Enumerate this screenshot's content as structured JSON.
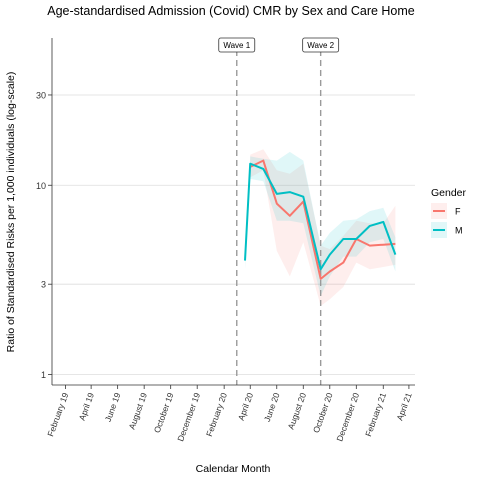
{
  "chart_data": {
    "type": "line",
    "title": "Age-standardised Admission (Covid) CMR by Sex and Care Home",
    "xlabel": "Calendar Month",
    "ylabel": "Ratio of Standardised Risks per 1,000 individuals (log-scale)",
    "y_scale": "log",
    "ylim": [
      0.88,
      60
    ],
    "y_ticks": [
      1,
      3,
      10,
      30
    ],
    "y_tick_labels": [
      "1",
      "3",
      "10",
      "30"
    ],
    "xlim": [
      "2019-01-01",
      "2021-04-15"
    ],
    "x_ticks": [
      "2019-02-01",
      "2019-04-01",
      "2019-06-01",
      "2019-08-01",
      "2019-10-01",
      "2019-12-01",
      "2020-02-01",
      "2020-04-01",
      "2020-06-01",
      "2020-08-01",
      "2020-10-01",
      "2020-12-01",
      "2021-02-01",
      "2021-04-01"
    ],
    "x_tick_labels": [
      "February 19",
      "April 19",
      "June 19",
      "August 19",
      "October 19",
      "December 19",
      "February 20",
      "April 20",
      "June 20",
      "August 20",
      "October 20",
      "December 20",
      "February 21",
      "April 21"
    ],
    "grid": "horizontal",
    "legend": {
      "title": "Gender",
      "position": "right"
    },
    "annotations": [
      {
        "label": "Wave 1",
        "x": "2020-03-01"
      },
      {
        "label": "Wave 2",
        "x": "2020-09-10"
      }
    ],
    "series": [
      {
        "name": "F",
        "color": "#F8766D",
        "x": [
          "2020-04-01",
          "2020-05-01",
          "2020-06-01",
          "2020-07-01",
          "2020-08-01",
          "2020-09-10",
          "2020-10-01",
          "2020-11-01",
          "2020-12-01",
          "2021-01-01",
          "2021-02-01",
          "2021-03-01"
        ],
        "y": [
          12.5,
          13.5,
          8.0,
          6.9,
          8.2,
          3.2,
          3.5,
          3.9,
          5.2,
          4.8,
          4.85,
          4.9
        ],
        "lower": [
          11.0,
          12.0,
          4.5,
          3.3,
          5.0,
          2.3,
          2.5,
          2.9,
          3.9,
          3.6,
          3.7,
          3.8
        ],
        "upper": [
          14.5,
          15.5,
          12.0,
          11.5,
          13.0,
          4.8,
          4.6,
          5.4,
          6.5,
          6.3,
          6.3,
          7.8
        ]
      },
      {
        "name": "M",
        "color": "#00BFC4",
        "x": [
          "2020-03-20",
          "2020-04-01",
          "2020-05-01",
          "2020-06-01",
          "2020-07-01",
          "2020-08-01",
          "2020-09-10",
          "2020-10-01",
          "2020-11-01",
          "2020-12-01",
          "2021-01-01",
          "2021-02-01",
          "2021-03-01"
        ],
        "y": [
          4.0,
          13.0,
          12.2,
          9.0,
          9.2,
          8.7,
          3.6,
          4.3,
          5.2,
          5.2,
          6.1,
          6.4,
          4.3
        ],
        "lower": [
          3.6,
          10.8,
          10.5,
          6.5,
          6.5,
          6.3,
          2.6,
          3.3,
          4.2,
          4.2,
          5.0,
          5.2,
          3.5
        ],
        "upper": [
          4.5,
          14.2,
          13.8,
          13.5,
          15.0,
          13.5,
          4.8,
          5.6,
          6.5,
          6.6,
          7.3,
          7.6,
          5.3
        ]
      }
    ]
  }
}
